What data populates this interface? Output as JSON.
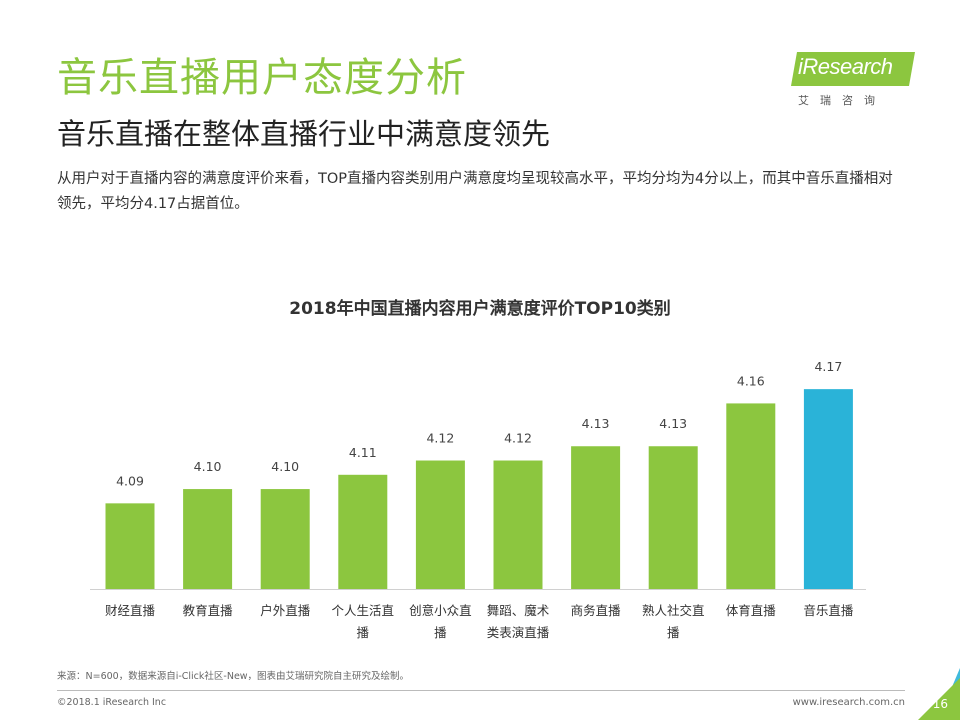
{
  "header": {
    "title": "音乐直播用户态度分析",
    "subtitle": "音乐直播在整体直播行业中满意度领先",
    "description": "从用户对于直播内容的满意度评价来看，TOP直播内容类别用户满意度均呈现较高水平，平均分均为4分以上，而其中音乐直播相对领先，平均分4.17占据首位。"
  },
  "logo": {
    "text": "iResearch",
    "cn": "艾瑞咨询"
  },
  "chart_data": {
    "type": "bar",
    "title": "2018年中国直播内容用户满意度评价TOP10类别",
    "categories": [
      "财经直播",
      "教育直播",
      "户外直播",
      "个人生活直播",
      "创意小众直播",
      "舞蹈、魔术类表演直播",
      "商务直播",
      "熟人社交直播",
      "体育直播",
      "音乐直播"
    ],
    "category_lines": [
      [
        "财经直播"
      ],
      [
        "教育直播"
      ],
      [
        "户外直播"
      ],
      [
        "个人生活直",
        "播"
      ],
      [
        "创意小众直",
        "播"
      ],
      [
        "舞蹈、魔术",
        "类表演直播"
      ],
      [
        "商务直播"
      ],
      [
        "熟人社交直",
        "播"
      ],
      [
        "体育直播"
      ],
      [
        "音乐直播"
      ]
    ],
    "values": [
      4.09,
      4.1,
      4.1,
      4.11,
      4.12,
      4.12,
      4.13,
      4.13,
      4.16,
      4.17
    ],
    "value_labels": [
      "4.09",
      "4.10",
      "4.10",
      "4.11",
      "4.12",
      "4.12",
      "4.13",
      "4.13",
      "4.16",
      "4.17"
    ],
    "highlight_index": 9,
    "ylim": [
      4.03,
      4.175
    ],
    "xlabel": "",
    "ylabel": "",
    "grid": false,
    "legend": "none"
  },
  "colors": {
    "bar": "#8cc63f",
    "highlight": "#2ab3d8",
    "accent": "#8cc63f"
  },
  "footer": {
    "source": "来源：N=600，数据来源自i-Click社区-New，图表由艾瑞研究院自主研究及绘制。",
    "copyright": "©2018.1 iResearch Inc",
    "site": "www.iresearch.com.cn",
    "page": "16"
  }
}
